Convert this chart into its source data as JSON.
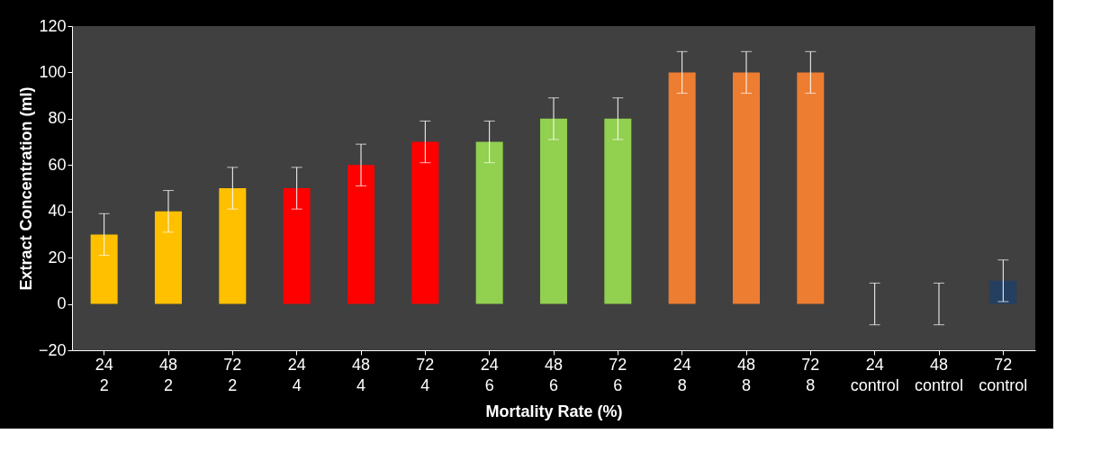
{
  "chart_data": {
    "type": "bar",
    "xlabel": "Mortality Rate (%)",
    "ylabel": "Extract Concentration (ml)",
    "categories": [
      "24",
      "48",
      "72",
      "24",
      "48",
      "72",
      "24",
      "48",
      "72",
      "24",
      "48",
      "72",
      "24",
      "48",
      "72"
    ],
    "values": [
      30,
      40,
      50,
      50,
      60,
      70,
      70,
      80,
      80,
      100,
      100,
      100,
      0,
      0,
      10
    ],
    "colors": [
      "#ffc000",
      "#ffc000",
      "#ffc000",
      "#ff0000",
      "#ff0000",
      "#ff0000",
      "#92d050",
      "#92d050",
      "#92d050",
      "#ed7d31",
      "#ed7d31",
      "#ed7d31",
      "#243f60",
      "#243f60",
      "#243f60"
    ],
    "errors": [
      9,
      9,
      9,
      9,
      9,
      9,
      9,
      9,
      9,
      9,
      9,
      9,
      9,
      9,
      9
    ],
    "annotations": [
      "2",
      "2",
      "2",
      "4",
      "4",
      "4",
      "6",
      "6",
      "6",
      "8",
      "8",
      "8",
      "control",
      "control",
      "control"
    ],
    "ylim": [
      -20,
      120
    ],
    "yticks": [
      -20,
      0,
      20,
      40,
      60,
      80,
      100,
      120
    ],
    "grid": false
  }
}
